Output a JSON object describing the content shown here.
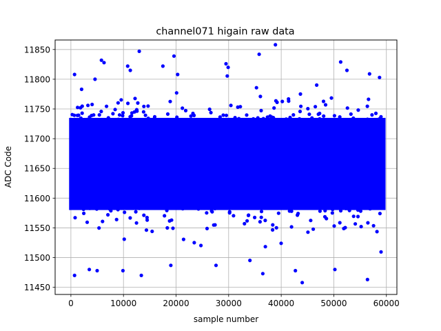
{
  "chart_data": {
    "type": "scatter",
    "title": "channel071 higain raw data",
    "xlabel": "sample number",
    "ylabel": "ADC Code",
    "xlim": [
      -3000,
      62000
    ],
    "ylim": [
      11438,
      11866
    ],
    "xticks": [
      0,
      10000,
      20000,
      30000,
      40000,
      50000,
      60000
    ],
    "yticks": [
      11450,
      11500,
      11550,
      11600,
      11650,
      11700,
      11750,
      11800,
      11850
    ],
    "grid": true,
    "series": [
      {
        "color": "#0000ff",
        "x_range": [
          0,
          59500
        ],
        "y_dense_band": [
          11580,
          11735
        ],
        "y_central": 11657,
        "outliers": [
          {
            "x": 700,
            "y": 11470
          },
          {
            "x": 700,
            "y": 11808
          },
          {
            "x": 3500,
            "y": 11480
          },
          {
            "x": 5000,
            "y": 11478
          },
          {
            "x": 5800,
            "y": 11832
          },
          {
            "x": 6300,
            "y": 11828
          },
          {
            "x": 9900,
            "y": 11478
          },
          {
            "x": 10800,
            "y": 11822
          },
          {
            "x": 11300,
            "y": 11815
          },
          {
            "x": 13000,
            "y": 11847
          },
          {
            "x": 13400,
            "y": 11470
          },
          {
            "x": 17500,
            "y": 11822
          },
          {
            "x": 19000,
            "y": 11487
          },
          {
            "x": 19600,
            "y": 11839
          },
          {
            "x": 20300,
            "y": 11808
          },
          {
            "x": 27600,
            "y": 11487
          },
          {
            "x": 29500,
            "y": 11826
          },
          {
            "x": 29900,
            "y": 11820
          },
          {
            "x": 35800,
            "y": 11842
          },
          {
            "x": 36500,
            "y": 11473
          },
          {
            "x": 38900,
            "y": 11858
          },
          {
            "x": 42700,
            "y": 11478
          },
          {
            "x": 44000,
            "y": 11458
          },
          {
            "x": 50200,
            "y": 11480
          },
          {
            "x": 51300,
            "y": 11829
          },
          {
            "x": 52500,
            "y": 11815
          },
          {
            "x": 56400,
            "y": 11463
          },
          {
            "x": 56800,
            "y": 11809
          },
          {
            "x": 58700,
            "y": 11803
          }
        ]
      }
    ]
  }
}
